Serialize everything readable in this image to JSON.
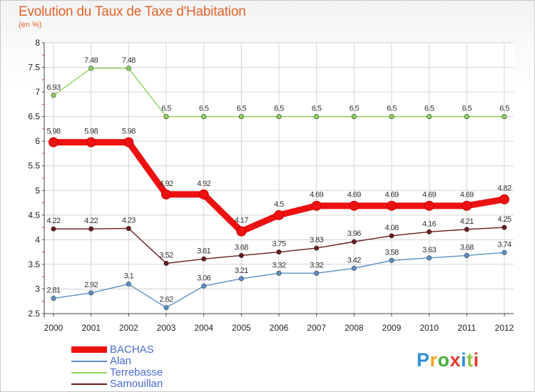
{
  "title": "Evolution du Taux de Taxe d'Habitation",
  "subtitle": "(en %)",
  "logo_text": "Proxiti",
  "chart_data": {
    "type": "line",
    "title": "Evolution du Taux de Taxe d'Habitation",
    "subtitle": "(en %)",
    "xlabel": "",
    "ylabel": "",
    "ylim": [
      2.5,
      8
    ],
    "y_ticks": [
      "2.5",
      "3",
      "3.5",
      "4",
      "4.5",
      "5",
      "5.5",
      "6",
      "6.5",
      "7",
      "7.5",
      "8"
    ],
    "categories": [
      "2000",
      "2001",
      "2002",
      "2003",
      "2004",
      "2005",
      "2006",
      "2007",
      "2008",
      "2009",
      "2010",
      "2011",
      "2012"
    ],
    "grid": true,
    "legend_position": "bottom-left",
    "series": [
      {
        "name": "Terrebasse",
        "color": "#8ed35a",
        "values": [
          6.93,
          7.48,
          7.48,
          6.5,
          6.5,
          6.5,
          6.5,
          6.5,
          6.5,
          6.5,
          6.5,
          6.5,
          6.5
        ],
        "labels": [
          "6.93",
          "7.48",
          "7.48",
          "6.5",
          "6.5",
          "6.5",
          "6.5",
          "6.5",
          "6.5",
          "6.5",
          "6.5",
          "6.5",
          "6.5"
        ]
      },
      {
        "name": "BACHAS",
        "color": "#ee1111",
        "values": [
          5.98,
          5.98,
          5.98,
          4.92,
          4.92,
          4.17,
          4.5,
          4.69,
          4.69,
          4.69,
          4.69,
          4.69,
          4.82
        ],
        "labels": [
          "5.98",
          "5.98",
          "5.98",
          "4.92",
          "4.92",
          "4.17",
          "4.5",
          "4.69",
          "4.69",
          "4.69",
          "4.69",
          "4.69",
          "4.82"
        ]
      },
      {
        "name": "Samouillan",
        "color": "#6b1a1a",
        "values": [
          4.22,
          4.22,
          4.23,
          3.52,
          3.61,
          3.68,
          3.75,
          3.83,
          3.96,
          4.08,
          4.16,
          4.21,
          4.25
        ],
        "labels": [
          "4.22",
          "4.22",
          "4.23",
          "3.52",
          "3.61",
          "3.68",
          "3.75",
          "3.83",
          "3.96",
          "4.08",
          "4.16",
          "4.21",
          "4.25"
        ]
      },
      {
        "name": "Alan",
        "color": "#5b8fc8",
        "values": [
          2.81,
          2.92,
          3.1,
          2.62,
          3.06,
          3.21,
          3.32,
          3.32,
          3.42,
          3.58,
          3.63,
          3.68,
          3.74
        ],
        "labels": [
          "2.81",
          "2.92",
          "3.1",
          "2.62",
          "3.06",
          "3.21",
          "3.32",
          "3.32",
          "3.42",
          "3.58",
          "3.63",
          "3.68",
          "3.74"
        ]
      }
    ],
    "legend": [
      {
        "name": "BACHAS",
        "color": "#ee1111"
      },
      {
        "name": "Alan",
        "color": "#5b8fc8"
      },
      {
        "name": "Terrebasse",
        "color": "#8ed35a"
      },
      {
        "name": "Samouillan",
        "color": "#6b1a1a"
      }
    ]
  }
}
